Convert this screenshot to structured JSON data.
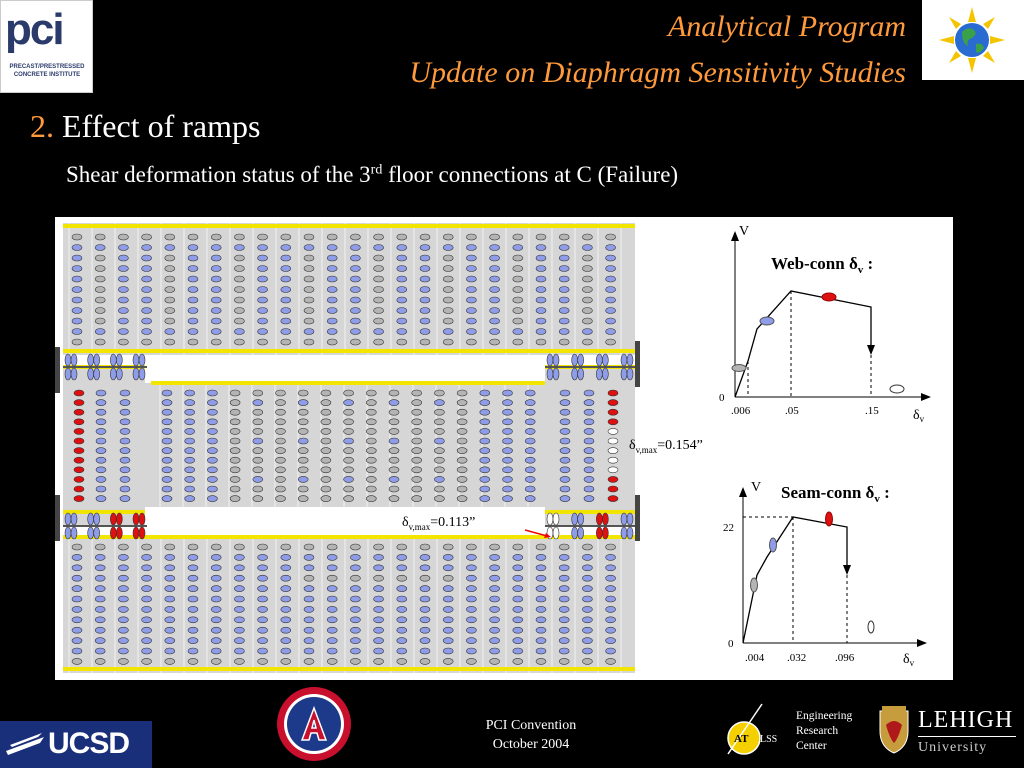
{
  "header": {
    "title_line1": "Analytical Program",
    "title_line2": "Update on Diaphragm Sensitivity Studies",
    "logo_left_text": "pci",
    "logo_left_subtext": "PRECAST/PRESTRESSED CONCRETE INSTITUTE"
  },
  "section": {
    "number": "2.",
    "title": "Effect of ramps"
  },
  "subtitle": {
    "before": "Shear deformation status of the 3",
    "sup": "rd",
    "after": " floor connections at C (Failure)"
  },
  "diagram": {
    "annotation_left": {
      "base": "δ",
      "sub": "v,max",
      "value": "=0.113”"
    },
    "annotation_right": {
      "base": "δ",
      "sub": "v,max",
      "value": "=0.154”"
    }
  },
  "charts": {
    "web_conn": {
      "title_text": "Web-conn ",
      "title_delta": "δ",
      "title_sub": "v",
      "title_colon": " :",
      "yaxis_label": "V",
      "xaxis_label_base": "δ",
      "xaxis_label_sub": "v",
      "origin_label": "0",
      "x_ticks": [
        ".006",
        ".05",
        ".15"
      ]
    },
    "seam_conn": {
      "title_text": "Seam-conn ",
      "title_delta": "δ",
      "title_sub": "v",
      "title_colon": " :",
      "yaxis_label": "V",
      "xaxis_label_base": "δ",
      "xaxis_label_sub": "v",
      "origin_label": "0",
      "y_tick": "22",
      "x_ticks": [
        ".004",
        ".032",
        ".096"
      ]
    }
  },
  "colors": {
    "accent_orange": "#ff9a3c",
    "beam_yellow": "#f2e600",
    "gray_state": "#b4b4b4",
    "blue_state": "#8f9ce8",
    "red_state": "#dd1111",
    "white_state": "#ffffff"
  },
  "footer": {
    "ucsd": "UCSD",
    "convention": "PCI Convention",
    "date": "October 2004",
    "atlss": "ATLSS",
    "erc_line1": "Engineering",
    "erc_line2": "Research",
    "erc_line3": "Center",
    "lehigh": "LEHIGH",
    "university": "University"
  }
}
